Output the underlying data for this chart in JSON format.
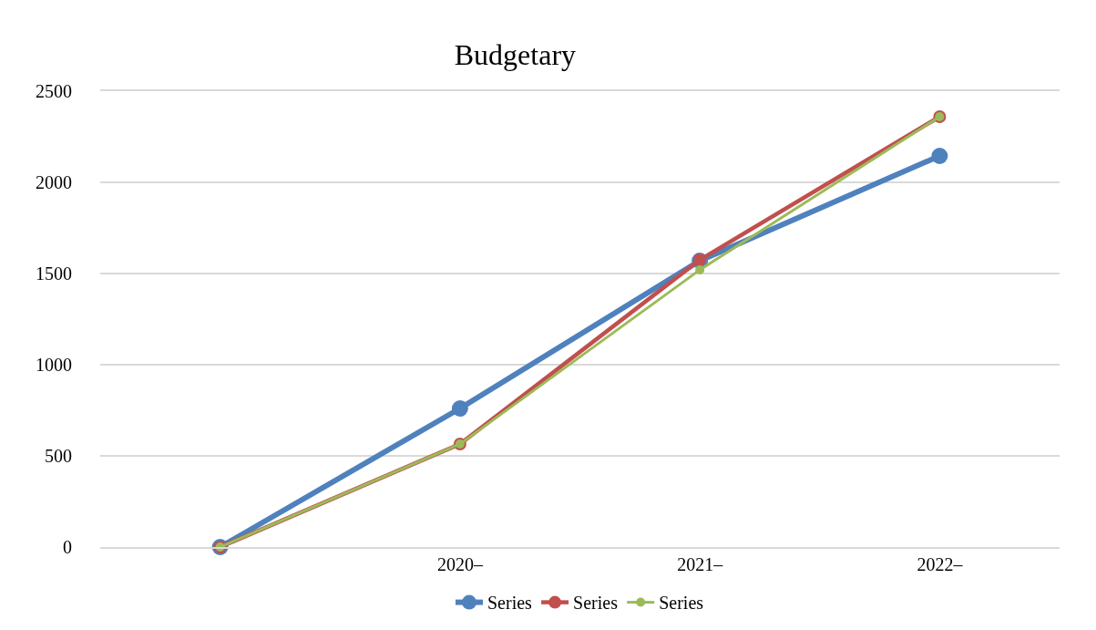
{
  "chart_data": {
    "type": "line",
    "title": "Budgetary",
    "categories": [
      null,
      "2020–",
      "2021–",
      "2022–"
    ],
    "series": [
      {
        "name": "Series",
        "color": "#4f81bd",
        "values": [
          0,
          760,
          1570,
          2145
        ]
      },
      {
        "name": "Series",
        "color": "#c0504d",
        "values": [
          0,
          565,
          1575,
          2360
        ]
      },
      {
        "name": "Series",
        "color": "#9bbb59",
        "values": [
          0,
          565,
          1520,
          2360
        ]
      }
    ],
    "ylim": [
      0,
      2500
    ],
    "yticks": [
      0,
      500,
      1000,
      1500,
      2000,
      2500
    ],
    "grid": "y",
    "legend": "bottom",
    "marker": "circle",
    "line_style": "solid"
  }
}
